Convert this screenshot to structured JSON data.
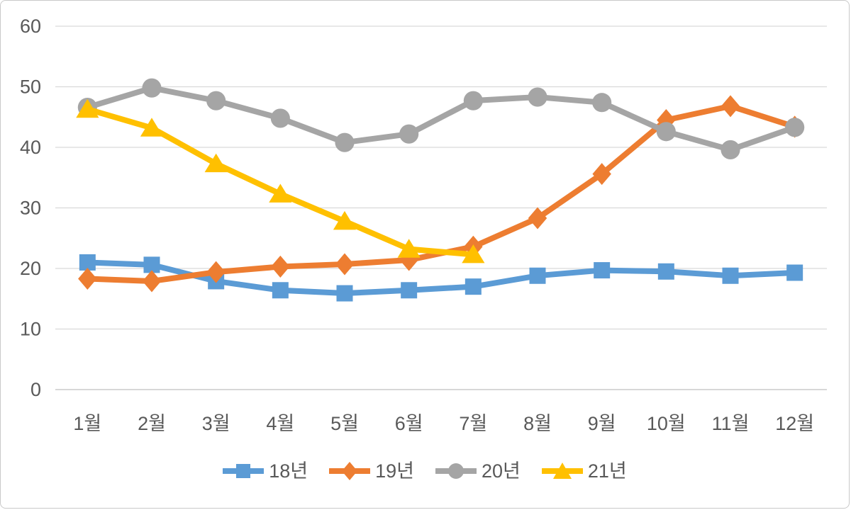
{
  "window": {
    "background": "#ffffff",
    "border_color": "#c9c9c9"
  },
  "chart_data": {
    "type": "line",
    "title": "",
    "xlabel": "",
    "ylabel": "",
    "categories": [
      "1월",
      "2월",
      "3월",
      "4월",
      "5월",
      "6월",
      "7월",
      "8월",
      "9월",
      "10월",
      "11월",
      "12월"
    ],
    "series": [
      {
        "name": "18년",
        "color": "#5B9BD5",
        "marker": "square",
        "values": [
          21.0,
          20.6,
          17.9,
          16.4,
          15.9,
          16.4,
          17.0,
          18.8,
          19.7,
          19.5,
          18.8,
          19.3
        ]
      },
      {
        "name": "19년",
        "color": "#ED7D31",
        "marker": "diamond",
        "values": [
          18.3,
          17.9,
          19.4,
          20.3,
          20.7,
          21.4,
          23.6,
          28.3,
          35.6,
          44.5,
          46.8,
          43.4
        ]
      },
      {
        "name": "20년",
        "color": "#A5A5A5",
        "marker": "circle",
        "values": [
          46.6,
          49.8,
          47.7,
          44.8,
          40.8,
          42.2,
          47.7,
          48.3,
          47.4,
          42.6,
          39.6,
          43.3
        ]
      },
      {
        "name": "21년",
        "color": "#FFC000",
        "marker": "triangle",
        "values": [
          46.3,
          43.2,
          37.3,
          32.3,
          27.8,
          23.2,
          22.3,
          null,
          null,
          null,
          null,
          null
        ]
      }
    ],
    "y_axis": {
      "min": 0,
      "max": 60,
      "step": 10,
      "ticks": [
        "0",
        "10",
        "20",
        "30",
        "40",
        "50",
        "60"
      ]
    },
    "grid": true,
    "gridline_color": "#D9D9D9",
    "axisline_color": "#BFBFBF",
    "tick_label_color": "#595959",
    "legend_position": "bottom",
    "line_width": 8
  }
}
